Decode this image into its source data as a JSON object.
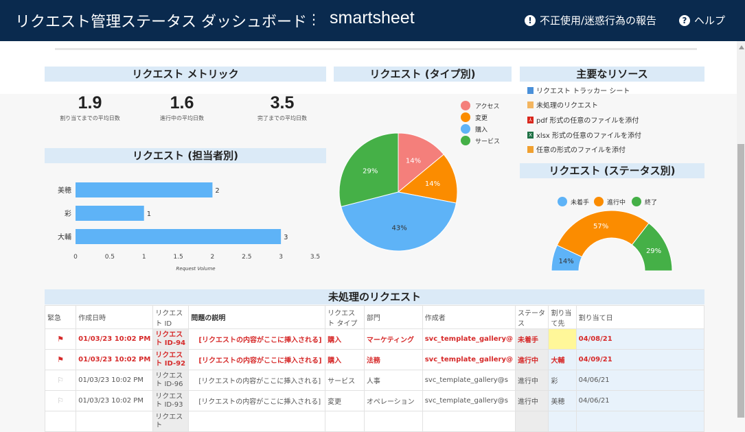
{
  "header": {
    "title": "リクエスト管理ステータス ダッシュボード",
    "brand": "smartsheet",
    "report_abuse": "不正使用/迷惑行為の報告",
    "help": "ヘルプ"
  },
  "metrics": {
    "title": "リクエスト メトリック",
    "items": [
      {
        "value": "1.9",
        "label": "割り当てまでの平均日数"
      },
      {
        "value": "1.6",
        "label": "進行中の平均日数"
      },
      {
        "value": "3.5",
        "label": "完了までの平均日数"
      }
    ]
  },
  "assignee_chart": {
    "title": "リクエスト (担当者別)",
    "xlabel": "Request Volume",
    "ticks": [
      "0",
      "0.5",
      "1",
      "1.5",
      "2",
      "2.5",
      "3",
      "3.5"
    ]
  },
  "type_chart": {
    "title": "リクエスト (タイプ別)"
  },
  "resources": {
    "title": "主要なリソース",
    "items": [
      {
        "label": "リクエスト トラッカー シート",
        "icon": "sheet-icon",
        "color": "#4a90d9"
      },
      {
        "label": "未処理のリクエスト",
        "icon": "report-icon",
        "color": "#f0a030"
      },
      {
        "label": "pdf 形式の任意のファイルを添付",
        "icon": "pdf-icon",
        "color": "#d9261c"
      },
      {
        "label": "xlsx 形式の任意のファイルを添付",
        "icon": "excel-icon",
        "color": "#1e7145"
      },
      {
        "label": "任意の形式のファイルを添付",
        "icon": "file-icon",
        "color": "#f0a030"
      }
    ]
  },
  "status_chart": {
    "title": "リクエスト (ステータス別)"
  },
  "table": {
    "title": "未処理のリクエスト",
    "columns": [
      "緊急",
      "作成日時",
      "リクエスト ID",
      "問題の説明",
      "リクエスト タイプ",
      "部門",
      "作成者",
      "ステータス",
      "割り当て先",
      "割り当て日"
    ],
    "rows": [
      {
        "urgent": true,
        "created": "01/03/23 10:02 PM",
        "id": "リクエスト ID-94",
        "desc": "[リクエストの内容がここに挿入される]",
        "type": "購入",
        "dept": "マーケティング",
        "author": "svc_template_gallery@",
        "status": "未着手",
        "assignee": "",
        "date": "04/08/21"
      },
      {
        "urgent": true,
        "created": "01/03/23 10:02 PM",
        "id": "リクエスト ID-92",
        "desc": "[リクエストの内容がここに挿入される]",
        "type": "購入",
        "dept": "法務",
        "author": "svc_template_gallery@",
        "status": "進行中",
        "assignee": "大輔",
        "date": "04/09/21"
      },
      {
        "urgent": false,
        "created": "01/03/23 10:02 PM",
        "id": "リクエスト ID-96",
        "desc": "[リクエストの内容がここに挿入される]",
        "type": "サービス",
        "dept": "人事",
        "author": "svc_template_gallery@s",
        "status": "進行中",
        "assignee": "彩",
        "date": "04/06/21"
      },
      {
        "urgent": false,
        "created": "01/03/23 10:02 PM",
        "id": "リクエスト ID-93",
        "desc": "[リクエストの内容がここに挿入される]",
        "type": "変更",
        "dept": "オペレーション",
        "author": "svc_template_gallery@s",
        "status": "進行中",
        "assignee": "美穂",
        "date": "04/06/21"
      },
      {
        "urgent": false,
        "created": "",
        "id": "リクエスト",
        "desc": "",
        "type": "",
        "dept": "",
        "author": "",
        "status": "",
        "assignee": "",
        "date": ""
      }
    ]
  },
  "chart_data": [
    {
      "type": "bar",
      "orientation": "horizontal",
      "categories": [
        "美穂",
        "彩",
        "大輔"
      ],
      "values": [
        2,
        1,
        3
      ],
      "xlim": [
        0,
        3.5
      ],
      "xlabel": "Request Volume",
      "color": "#5eb3f7"
    },
    {
      "type": "pie",
      "categories": [
        "アクセス",
        "変更",
        "購入",
        "サービス"
      ],
      "values": [
        14,
        14,
        43,
        29
      ],
      "labels": [
        "14%",
        "14%",
        "43%",
        "29%"
      ],
      "colors": [
        "#f47f7b",
        "#fb8c00",
        "#5eb3f7",
        "#45b047"
      ],
      "legend": "top-right"
    },
    {
      "type": "pie",
      "variant": "half-donut",
      "categories": [
        "未着手",
        "進行中",
        "終了"
      ],
      "values": [
        14,
        57,
        29
      ],
      "labels": [
        "14%",
        "57%",
        "29%"
      ],
      "colors": [
        "#5eb3f7",
        "#fb8c00",
        "#45b047"
      ],
      "legend": "top"
    }
  ]
}
